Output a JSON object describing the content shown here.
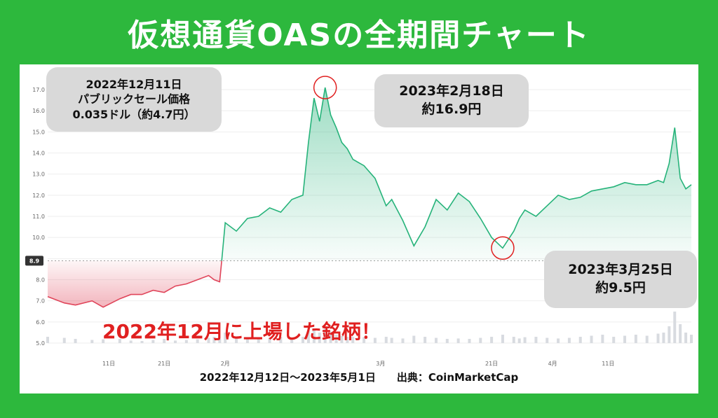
{
  "title": "仮想通貨OASの全期間チャート",
  "annotations": {
    "public_sale": {
      "line1": "2022年12月11日",
      "line2": "パブリックセール価格",
      "line3": "0.035ドル（約4.7円）"
    },
    "peak": {
      "line1": "2023年2月18日",
      "line2": "約16.9円"
    },
    "low": {
      "line1": "2023年3月25日",
      "line2": "約9.5円"
    },
    "listing": "2022年12月に上場した銘柄！"
  },
  "caption": "2022年12月12日〜2023年5月1日　　出典：CoinMarketCap",
  "colors": {
    "background": "#2db83d",
    "up_line": "#26b37a",
    "down_line": "#e0455a",
    "highlight_circle": "#e02020"
  },
  "chart_data": {
    "type": "area",
    "title": "",
    "xlabel": "",
    "ylabel": "",
    "ylim": [
      5.0,
      17.0
    ],
    "baseline": 8.9,
    "yticks": [
      "5.0",
      "6.0",
      "7.0",
      "8.0",
      "9.0",
      "10.0",
      "11.0",
      "12.0",
      "13.0",
      "14.0",
      "15.0",
      "16.0",
      "17.0"
    ],
    "current_price_label": "8.9",
    "xticks": [
      {
        "label": "11日",
        "day": 11
      },
      {
        "label": "21日",
        "day": 21
      },
      {
        "label": "2月",
        "day": 32
      },
      {
        "label": "3月",
        "day": 60
      },
      {
        "label": "21日",
        "day": 80
      },
      {
        "label": "4月",
        "day": 91
      },
      {
        "label": "11日",
        "day": 101
      }
    ],
    "x": [
      0,
      3,
      5,
      8,
      10,
      13,
      15,
      17,
      19,
      21,
      23,
      25,
      27,
      29,
      30,
      31,
      32,
      34,
      36,
      38,
      40,
      42,
      44,
      46,
      47,
      48,
      49,
      50,
      51,
      52,
      53,
      54,
      55,
      57,
      59,
      61,
      62,
      64,
      66,
      68,
      70,
      72,
      74,
      76,
      78,
      80,
      82,
      84,
      85,
      86,
      88,
      90,
      92,
      94,
      96,
      98,
      100,
      102,
      104,
      106,
      108,
      110,
      111,
      112,
      113,
      114,
      115,
      116
    ],
    "values": [
      7.2,
      6.9,
      6.8,
      7.0,
      6.7,
      7.1,
      7.3,
      7.3,
      7.5,
      7.4,
      7.7,
      7.8,
      8.0,
      8.2,
      8.0,
      7.9,
      10.7,
      10.3,
      10.9,
      11.0,
      11.4,
      11.2,
      11.8,
      12.0,
      14.5,
      16.6,
      15.5,
      17.1,
      15.8,
      15.2,
      14.5,
      14.2,
      13.7,
      13.4,
      12.8,
      11.5,
      11.8,
      10.8,
      9.6,
      10.5,
      11.8,
      11.3,
      12.1,
      11.7,
      10.9,
      10.0,
      9.5,
      10.3,
      10.9,
      11.3,
      11.0,
      11.5,
      12.0,
      11.8,
      11.9,
      12.2,
      12.3,
      12.4,
      12.6,
      12.5,
      12.5,
      12.7,
      12.6,
      13.5,
      15.2,
      12.8,
      12.3,
      12.5
    ],
    "volume": [
      0.3,
      0.25,
      0.2,
      0.15,
      0.18,
      0.2,
      0.12,
      0.1,
      0.15,
      0.2,
      0.12,
      0.15,
      0.18,
      0.25,
      0.3,
      0.2,
      0.5,
      0.3,
      0.25,
      0.2,
      0.25,
      0.3,
      0.22,
      0.3,
      0.6,
      0.7,
      0.5,
      0.8,
      0.55,
      0.4,
      0.35,
      0.3,
      0.3,
      0.28,
      0.25,
      0.3,
      0.25,
      0.22,
      0.35,
      0.3,
      0.25,
      0.2,
      0.22,
      0.2,
      0.25,
      0.3,
      0.4,
      0.3,
      0.22,
      0.28,
      0.3,
      0.25,
      0.22,
      0.25,
      0.3,
      0.35,
      0.4,
      0.3,
      0.35,
      0.4,
      0.35,
      0.45,
      0.5,
      0.8,
      1.5,
      0.9,
      0.5,
      0.4
    ],
    "highlights": [
      {
        "x": 50,
        "y": 17.1
      },
      {
        "x": 82,
        "y": 9.5
      }
    ]
  }
}
